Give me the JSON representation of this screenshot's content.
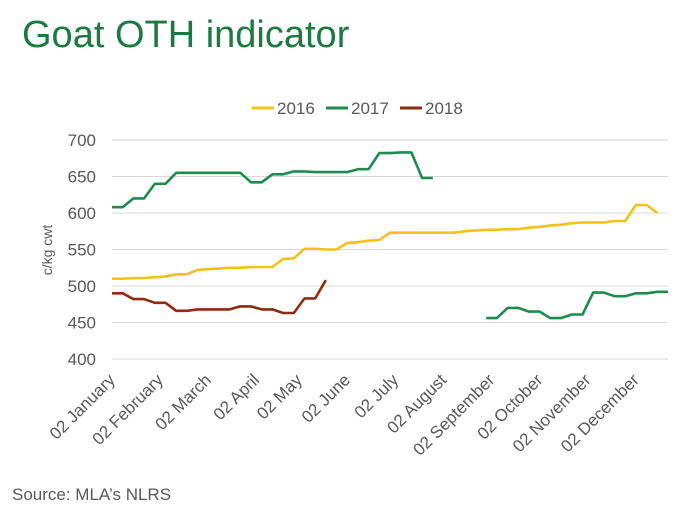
{
  "title": "Goat OTH indicator",
  "source": "Source: MLA’s NLRS",
  "chart_data": {
    "type": "line",
    "title": "Goat OTH indicator",
    "xlabel": "",
    "ylabel": "c/kg cwt",
    "ylim": [
      400,
      700
    ],
    "yticks": [
      400,
      450,
      500,
      550,
      600,
      650,
      700
    ],
    "xlim": [
      1,
      53
    ],
    "x_unit": "week",
    "categories": [
      "02 January",
      "02 February",
      "02 March",
      "02 April",
      "02 May",
      "02 June",
      "02 July",
      "02 August",
      "02 September",
      "02 October",
      "02 November",
      "02 December"
    ],
    "category_weeks": [
      1,
      5.5,
      10,
      14.5,
      18.5,
      23,
      27.5,
      32,
      36.5,
      41,
      45.5,
      50
    ],
    "grid": true,
    "legend": "top",
    "series": [
      {
        "name": "2016",
        "color": "#f5c116",
        "points": [
          [
            1,
            510
          ],
          [
            2,
            510
          ],
          [
            3,
            511
          ],
          [
            4,
            511
          ],
          [
            5,
            512
          ],
          [
            6,
            513
          ],
          [
            7,
            516
          ],
          [
            8,
            516
          ],
          [
            9,
            522
          ],
          [
            10,
            523
          ],
          [
            11,
            524
          ],
          [
            12,
            525
          ],
          [
            13,
            525
          ],
          [
            14,
            526
          ],
          [
            15,
            526
          ],
          [
            16,
            526
          ],
          [
            17,
            537
          ],
          [
            18,
            538
          ],
          [
            19,
            551
          ],
          [
            20,
            551
          ],
          [
            21,
            550
          ],
          [
            22,
            550
          ],
          [
            23,
            559
          ],
          [
            24,
            560
          ],
          [
            25,
            562
          ],
          [
            26,
            563
          ],
          [
            27,
            573
          ],
          [
            28,
            573
          ],
          [
            29,
            573
          ],
          [
            30,
            573
          ],
          [
            31,
            573
          ],
          [
            32,
            573
          ],
          [
            33,
            573
          ],
          [
            34,
            575
          ],
          [
            35,
            576
          ],
          [
            36,
            577
          ],
          [
            37,
            577
          ],
          [
            38,
            578
          ],
          [
            39,
            578
          ],
          [
            40,
            580
          ],
          [
            41,
            581
          ],
          [
            42,
            583
          ],
          [
            43,
            584
          ],
          [
            44,
            586
          ],
          [
            45,
            587
          ],
          [
            46,
            587
          ],
          [
            47,
            587
          ],
          [
            48,
            589
          ],
          [
            49,
            589
          ],
          [
            50,
            611
          ],
          [
            51,
            611
          ],
          [
            52,
            600
          ]
        ]
      },
      {
        "name": "2017",
        "color": "#1e8c4e",
        "points": [
          [
            1,
            608
          ],
          [
            2,
            608
          ],
          [
            3,
            620
          ],
          [
            4,
            620
          ],
          [
            5,
            640
          ],
          [
            6,
            640
          ],
          [
            7,
            655
          ],
          [
            8,
            655
          ],
          [
            9,
            655
          ],
          [
            10,
            655
          ],
          [
            11,
            655
          ],
          [
            12,
            655
          ],
          [
            13,
            655
          ],
          [
            14,
            642
          ],
          [
            15,
            642
          ],
          [
            16,
            653
          ],
          [
            17,
            653
          ],
          [
            18,
            657
          ],
          [
            19,
            657
          ],
          [
            20,
            656
          ],
          [
            21,
            656
          ],
          [
            22,
            656
          ],
          [
            23,
            656
          ],
          [
            24,
            660
          ],
          [
            25,
            660
          ],
          [
            26,
            682
          ],
          [
            27,
            682
          ],
          [
            28,
            683
          ],
          [
            29,
            683
          ],
          [
            30,
            648
          ],
          [
            31,
            648
          ],
          null,
          [
            36,
            456
          ],
          [
            37,
            456
          ],
          [
            38,
            470
          ],
          [
            39,
            470
          ],
          [
            40,
            465
          ],
          [
            41,
            465
          ],
          [
            42,
            456
          ],
          [
            43,
            456
          ],
          [
            44,
            461
          ],
          [
            45,
            461
          ],
          [
            46,
            491
          ],
          [
            47,
            491
          ],
          [
            48,
            486
          ],
          [
            49,
            486
          ],
          [
            50,
            490
          ],
          [
            51,
            490
          ],
          [
            52,
            492
          ],
          [
            53,
            492
          ]
        ]
      },
      {
        "name": "2018",
        "color": "#8b2c0d",
        "points": [
          [
            1,
            490
          ],
          [
            2,
            490
          ],
          [
            3,
            482
          ],
          [
            4,
            482
          ],
          [
            5,
            477
          ],
          [
            6,
            477
          ],
          [
            7,
            466
          ],
          [
            8,
            466
          ],
          [
            9,
            468
          ],
          [
            10,
            468
          ],
          [
            11,
            468
          ],
          [
            12,
            468
          ],
          [
            13,
            472
          ],
          [
            14,
            472
          ],
          [
            15,
            468
          ],
          [
            16,
            468
          ],
          [
            17,
            463
          ],
          [
            18,
            463
          ],
          [
            19,
            483
          ],
          [
            20,
            483
          ],
          [
            21,
            508
          ]
        ]
      }
    ]
  }
}
